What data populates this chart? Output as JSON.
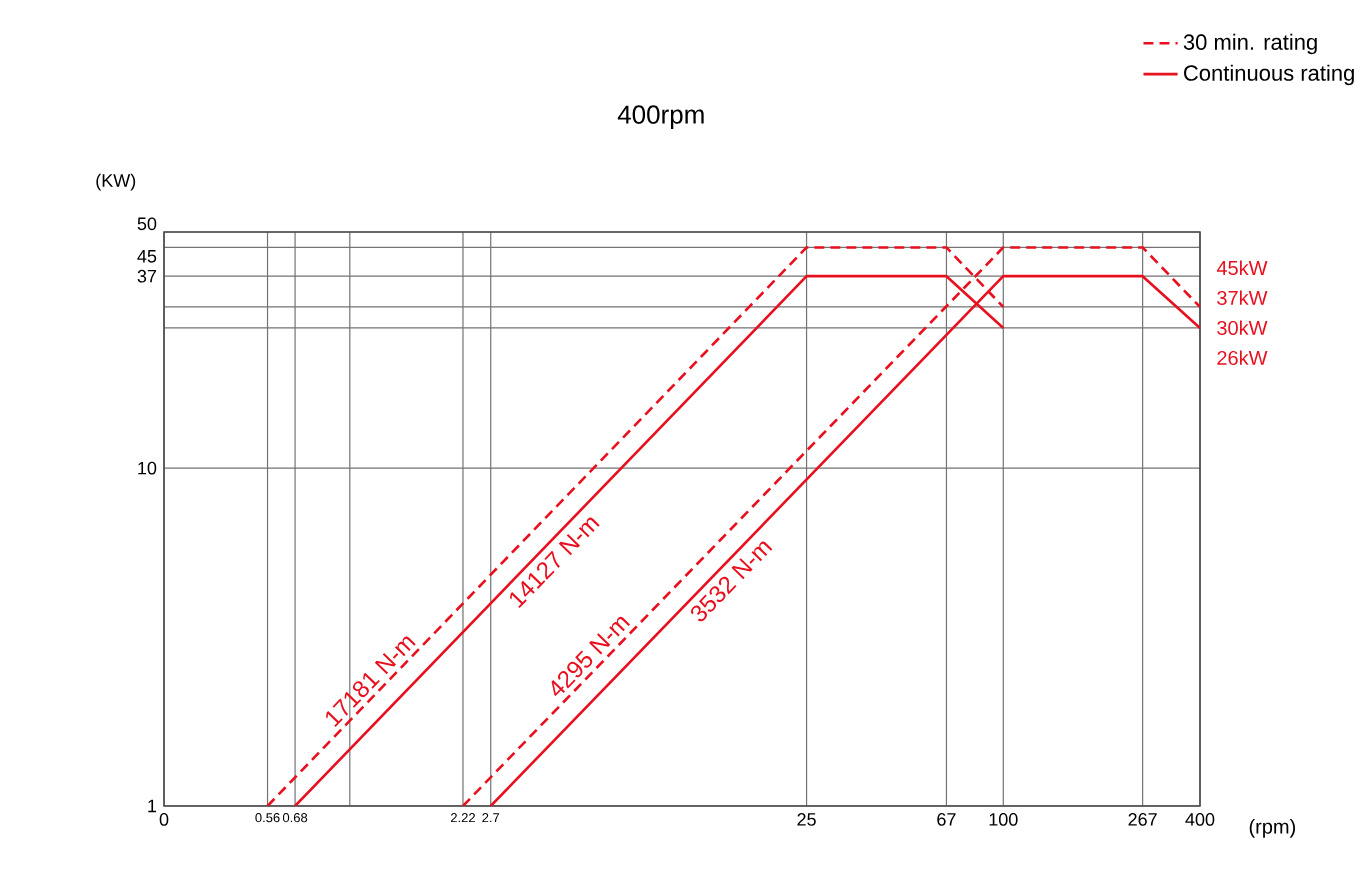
{
  "chart_data": {
    "type": "line",
    "title": "400rpm",
    "xlabel": "(rpm)",
    "ylabel": "(KW)",
    "log": "xy",
    "grid": true,
    "legend": "top right",
    "xlim": [
      0.27,
      400
    ],
    "ylim": [
      1,
      50
    ],
    "xticks": [
      {
        "value": 0.27,
        "label": "0"
      },
      0.56,
      0.68,
      {
        "value": 1,
        "label": null
      },
      2.22,
      2.7,
      25,
      67,
      100,
      267,
      400
    ],
    "yticks": [
      1,
      10,
      {
        "value": 26,
        "label": null
      },
      {
        "value": 30,
        "label": null
      },
      37,
      45,
      50
    ],
    "series": [
      {
        "name": "30 min. rating",
        "color": "#e8101e",
        "line_style": "dashed",
        "x": [
          0.56,
          25,
          67,
          100
        ],
        "values": [
          1,
          45,
          45,
          30
        ]
      },
      {
        "name": "Continuous rating",
        "color": "#e8101e",
        "line_style": "solid",
        "x": [
          0.68,
          25,
          67,
          100
        ],
        "values": [
          1,
          37,
          37,
          26
        ]
      },
      {
        "color": "#e8101e",
        "line_style": "dashed",
        "x": [
          2.22,
          100,
          267,
          400
        ],
        "values": [
          1,
          45,
          45,
          30
        ]
      },
      {
        "color": "#e8101e",
        "line_style": "solid",
        "x": [
          2.7,
          100,
          267,
          400
        ],
        "values": [
          1,
          37,
          37,
          26
        ]
      }
    ],
    "annotations": [
      {
        "text": "17181 N-m",
        "x": 1.24,
        "y": 2.2
      },
      {
        "text": "14127 N-m",
        "x": 3.9,
        "y": 5.7
      },
      {
        "text": "4295 N-m",
        "x": 5.8,
        "y": 2.6
      },
      {
        "text": "3532 N-m",
        "x": 13.6,
        "y": 5.0
      },
      "45kW",
      "37kW",
      "30kW",
      "26kW"
    ]
  }
}
